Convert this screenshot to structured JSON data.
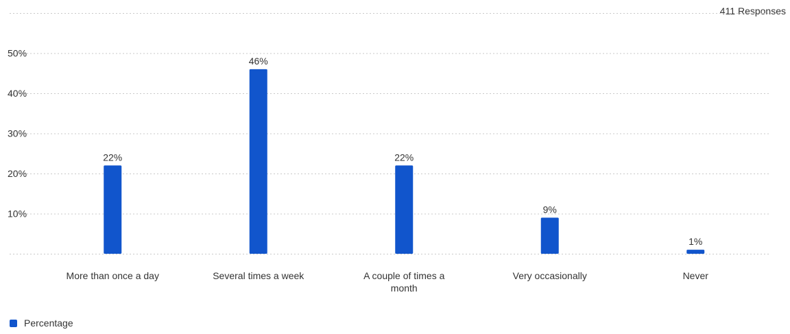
{
  "responses_label": "411 Responses",
  "legend": {
    "label": "Percentage",
    "color": "#1155cc"
  },
  "chart_data": {
    "type": "bar",
    "categories": [
      "More than once a day",
      "Several times a week",
      "A couple of times a month",
      "Very occasionally",
      "Never"
    ],
    "category_label_lines": [
      [
        "More than once a day"
      ],
      [
        "Several times a week"
      ],
      [
        "A couple of times a",
        "month"
      ],
      [
        "Very occasionally"
      ],
      [
        "Never"
      ]
    ],
    "series": [
      {
        "name": "Percentage",
        "values": [
          22,
          46,
          22,
          9,
          1
        ],
        "labels": [
          "22%",
          "46%",
          "22%",
          "9%",
          "1%"
        ],
        "color": "#1155cc"
      }
    ],
    "ylim": [
      0,
      52
    ],
    "yticks": [
      10,
      20,
      30,
      40,
      50
    ],
    "ytick_labels": [
      "10%",
      "20%",
      "30%",
      "40%",
      "50%"
    ],
    "grid": true,
    "legend_position": "bottom-left"
  }
}
